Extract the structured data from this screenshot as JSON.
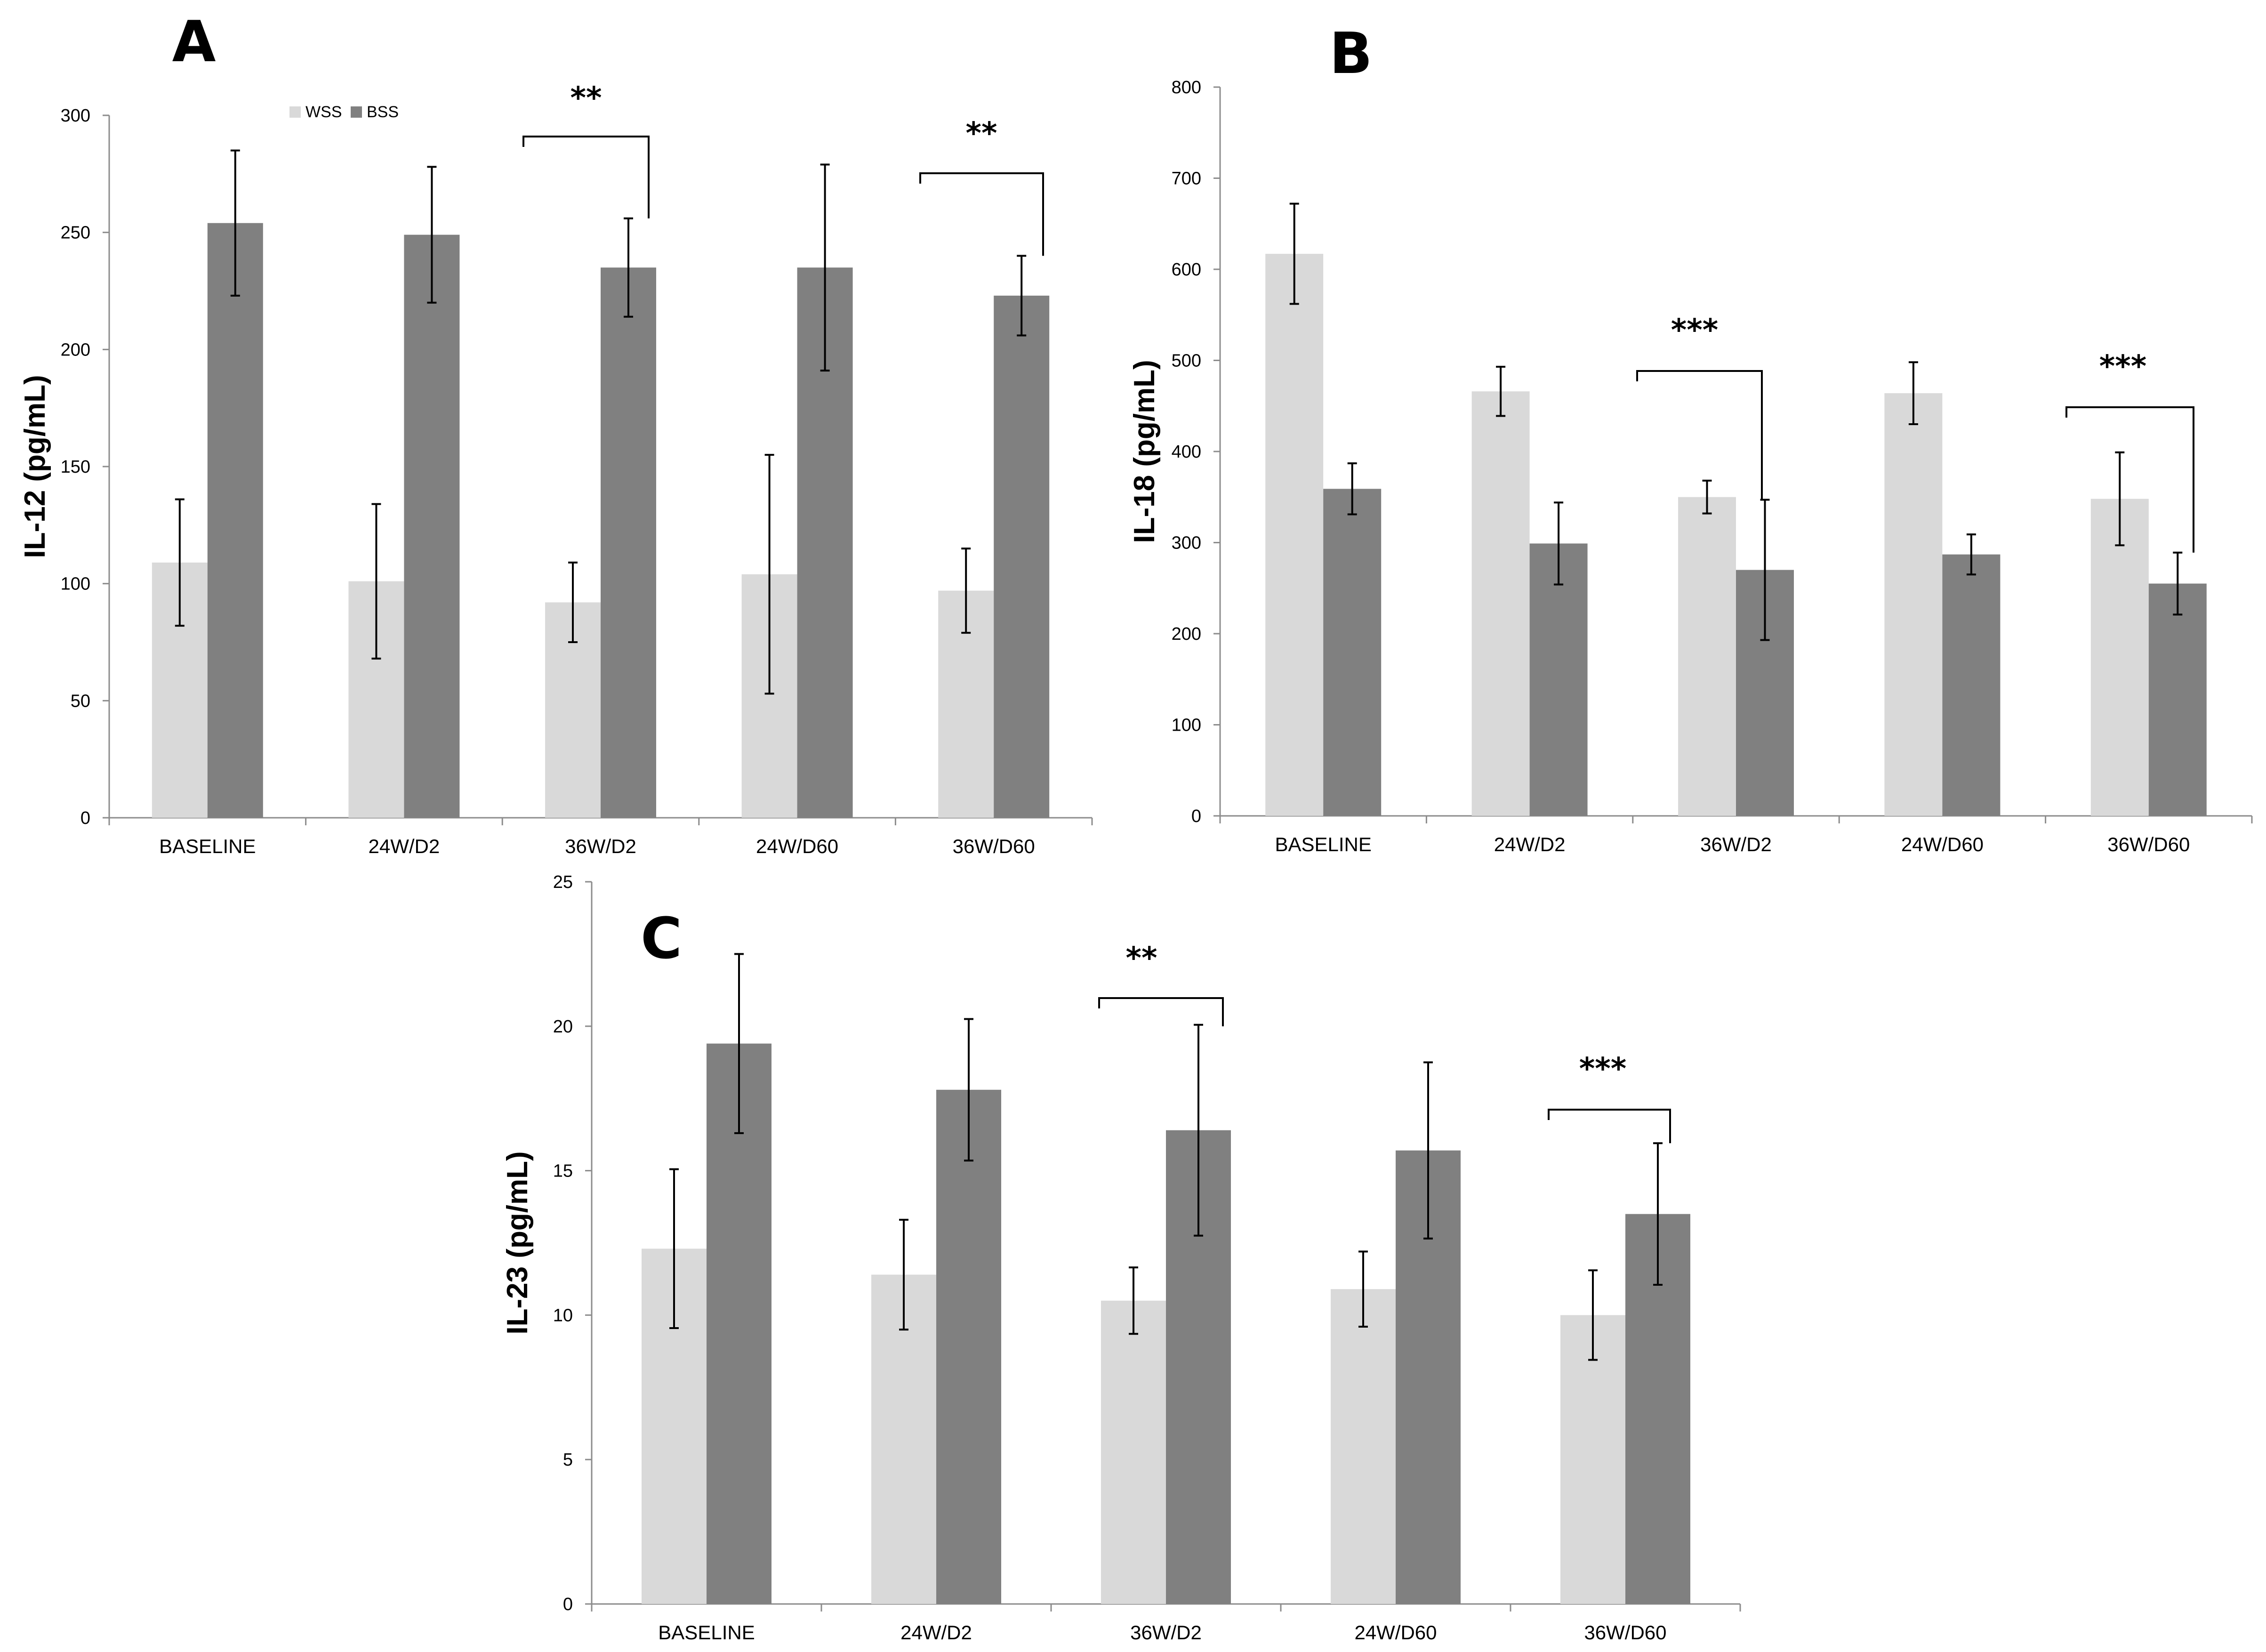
{
  "colors": {
    "wss": "#d9d9d9",
    "bss": "#808080",
    "axis": "#8c8c8c",
    "text": "#000000"
  },
  "chart_data": [
    {
      "type": "bar",
      "panel_label": "A",
      "ylabel": "IL-12 (pg/mL)",
      "categories": [
        "BASELINE",
        "24W/D2",
        "36W/D2",
        "24W/D60",
        "36W/D60"
      ],
      "ylim": [
        0,
        300
      ],
      "yticks": [
        0,
        50,
        100,
        150,
        200,
        250,
        300
      ],
      "legend": {
        "position": "top",
        "labels": [
          "WSS",
          "BSS"
        ]
      },
      "series": [
        {
          "name": "WSS",
          "values": [
            109,
            101,
            92,
            104,
            97
          ],
          "errors": [
            27,
            33,
            17,
            51,
            18
          ]
        },
        {
          "name": "BSS",
          "values": [
            254,
            249,
            235,
            235,
            223
          ],
          "errors": [
            31,
            29,
            21,
            44,
            17
          ]
        }
      ],
      "significance": [
        {
          "category_index": 2,
          "label": "**"
        },
        {
          "category_index": 4,
          "label": "**"
        }
      ]
    },
    {
      "type": "bar",
      "panel_label": "B",
      "ylabel": "IL-18 (pg/mL)",
      "categories": [
        "BASELINE",
        "24W/D2",
        "36W/D2",
        "24W/D60",
        "36W/D60"
      ],
      "ylim": [
        0,
        800
      ],
      "yticks": [
        0,
        100,
        200,
        300,
        400,
        500,
        600,
        700,
        800
      ],
      "series": [
        {
          "name": "WSS",
          "values": [
            617,
            466,
            350,
            464,
            348
          ],
          "errors": [
            55,
            27,
            18,
            34,
            51
          ]
        },
        {
          "name": "BSS",
          "values": [
            359,
            299,
            270,
            287,
            255
          ],
          "errors": [
            28,
            45,
            77,
            22,
            34
          ]
        }
      ],
      "significance": [
        {
          "category_index": 2,
          "label": "***"
        },
        {
          "category_index": 4,
          "label": "***"
        }
      ]
    },
    {
      "type": "bar",
      "panel_label": "C",
      "ylabel": "IL-23 (pg/mL)",
      "categories": [
        "BASELINE",
        "24W/D2",
        "36W/D2",
        "24W/D60",
        "36W/D60"
      ],
      "ylim": [
        0,
        25
      ],
      "yticks": [
        0,
        5,
        10,
        15,
        20,
        25
      ],
      "series": [
        {
          "name": "WSS",
          "values": [
            12.3,
            11.4,
            10.5,
            10.9,
            10.0
          ],
          "errors": [
            2.75,
            1.9,
            1.15,
            1.3,
            1.55
          ]
        },
        {
          "name": "BSS",
          "values": [
            19.4,
            17.8,
            16.4,
            15.7,
            13.5
          ],
          "errors": [
            3.1,
            2.45,
            3.65,
            3.05,
            2.45
          ]
        }
      ],
      "significance": [
        {
          "category_index": 2,
          "label": "**"
        },
        {
          "category_index": 4,
          "label": "***"
        }
      ]
    }
  ]
}
